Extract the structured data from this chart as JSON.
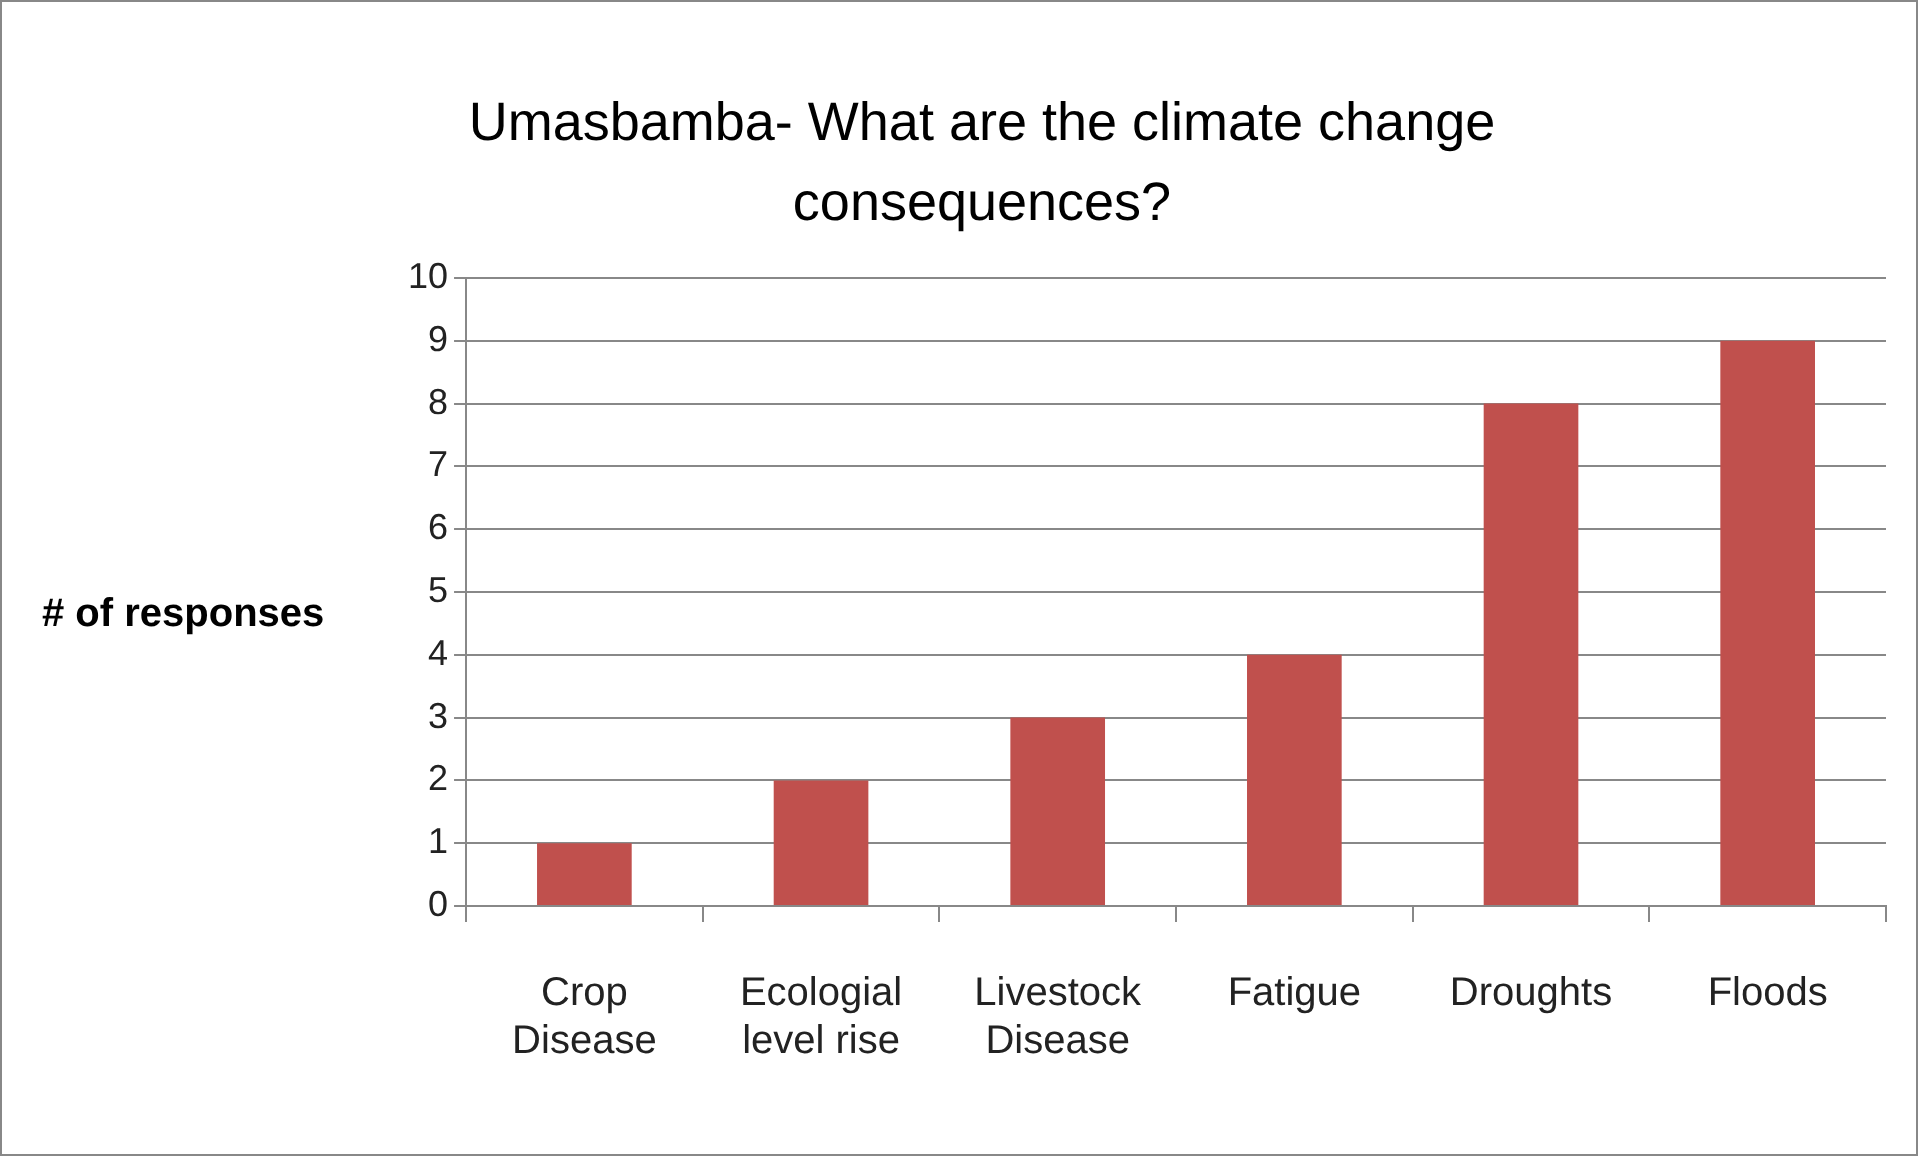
{
  "chart_data": {
    "type": "bar",
    "title": "Umasbamba- What are the climate change consequences?",
    "ylabel": "# of responses",
    "categories": [
      "Crop Disease",
      "Ecologial level rise",
      "Livestock Disease",
      "Fatigue",
      "Droughts",
      "Floods"
    ],
    "values": [
      1,
      2,
      3,
      4,
      8,
      9
    ],
    "color": "#c0504d",
    "ylim": [
      0,
      10
    ],
    "yticks": [
      0,
      1,
      2,
      3,
      4,
      5,
      6,
      7,
      8,
      9,
      10
    ],
    "grid": "y",
    "legend": false
  }
}
